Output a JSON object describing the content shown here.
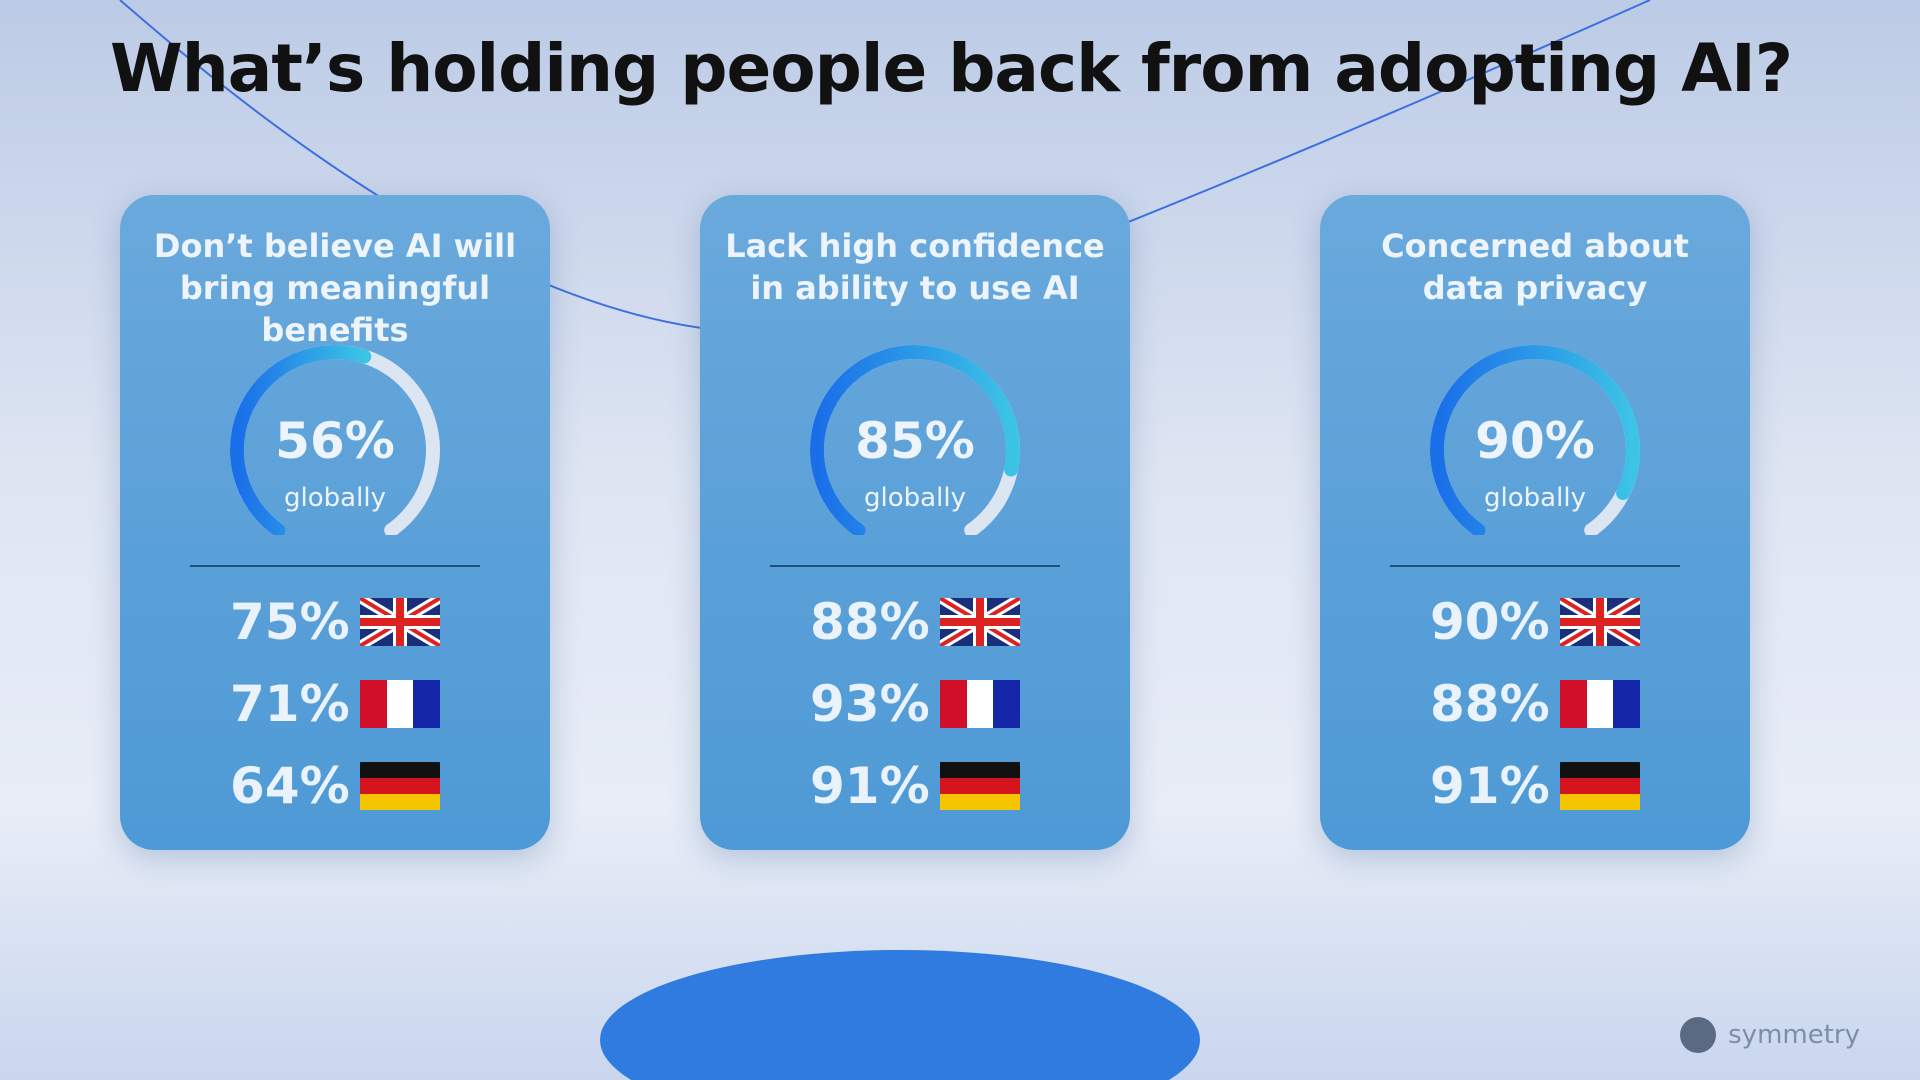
{
  "title": "What’s holding people back from adopting AI?",
  "logo": "symmetry",
  "chart_data": [
    {
      "type": "gauge",
      "title": "Don’t believe AI will bring meaningful benefits",
      "ylim": [
        0,
        100
      ],
      "values": [
        56
      ],
      "value_labels": [
        "56%"
      ],
      "caption": "globally",
      "breakdown": {
        "values": [
          75,
          71,
          64
        ],
        "value_labels": [
          "75%",
          "71%",
          "64%"
        ]
      }
    },
    {
      "type": "gauge",
      "title": "Lack high confidence in ability to use AI",
      "ylim": [
        0,
        100
      ],
      "values": [
        85
      ],
      "value_labels": [
        "85%"
      ],
      "caption": "globally",
      "breakdown": {
        "values": [
          88,
          93,
          91
        ],
        "value_labels": [
          "88%",
          "93%",
          "91%"
        ]
      }
    },
    {
      "type": "gauge",
      "title": "Concerned about data privacy",
      "ylim": [
        0,
        100
      ],
      "values": [
        90
      ],
      "value_labels": [
        "90%"
      ],
      "caption": "globally",
      "breakdown": {
        "values": [
          90,
          88,
          91
        ],
        "value_labels": [
          "90%",
          "88%",
          "91%"
        ]
      }
    }
  ]
}
